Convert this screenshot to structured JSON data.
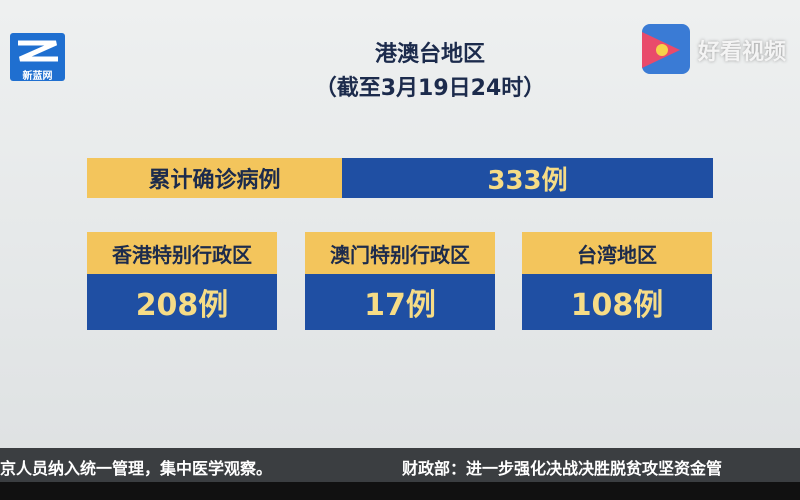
{
  "logo": {
    "left": "新蓝网",
    "right": "好看视频"
  },
  "header": {
    "title": "港澳台地区",
    "subtitle": "（截至3月19日24时）"
  },
  "summary": {
    "label": "累计确诊病例",
    "value": "333例"
  },
  "regions": [
    {
      "label": "香港特别行政区",
      "value": "208例"
    },
    {
      "label": "澳门特别行政区",
      "value": "17例"
    },
    {
      "label": "台湾地区",
      "value": "108例"
    }
  ],
  "ticker": {
    "left": "京人员纳入统一管理，集中医学观察。",
    "right": "财政部：进一步强化决战决胜脱贫攻坚资金管"
  }
}
